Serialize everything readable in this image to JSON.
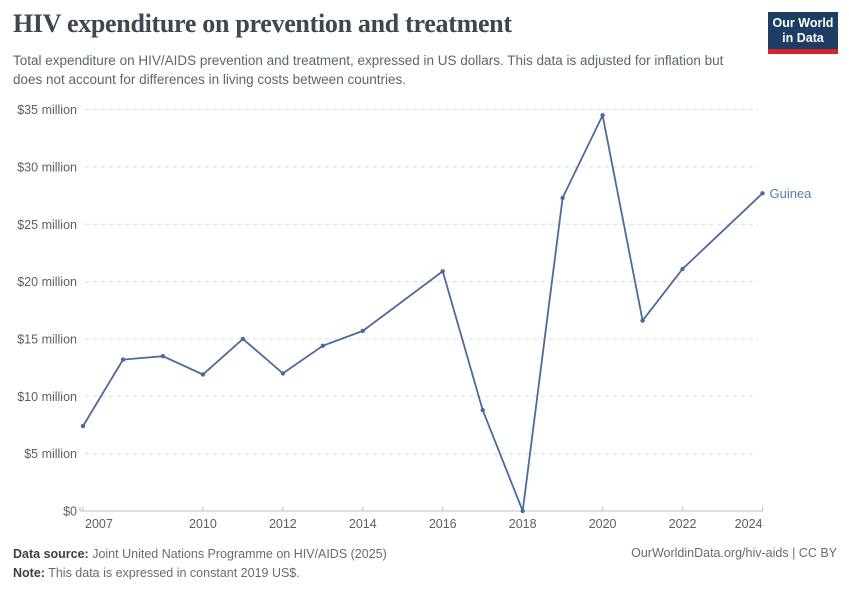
{
  "chart_data": {
    "type": "line",
    "title": "HIV expenditure on prevention and treatment",
    "subtitle": "Total expenditure on HIV/AIDS prevention and treatment, expressed in US dollars. This data is adjusted for inflation but does not account for differences in living costs between countries.",
    "values_unit": "million US$ (constant 2019)",
    "series": [
      {
        "name": "Guinea",
        "points": [
          [
            2007,
            7.4
          ],
          [
            2008,
            13.2
          ],
          [
            2009,
            13.5
          ],
          [
            2010,
            11.9
          ],
          [
            2011,
            15.0
          ],
          [
            2012,
            12.0
          ],
          [
            2013,
            14.4
          ],
          [
            2014,
            15.7
          ],
          [
            2016,
            20.9
          ],
          [
            2017,
            8.8
          ],
          [
            2018,
            0
          ],
          [
            2019,
            27.3
          ],
          [
            2020,
            34.5
          ],
          [
            2021,
            16.6
          ],
          [
            2022,
            21.1
          ],
          [
            2024,
            27.7
          ]
        ]
      }
    ],
    "missing_years": [
      2015,
      2023
    ],
    "x_ticks": [
      2007,
      2010,
      2012,
      2014,
      2016,
      2018,
      2020,
      2022,
      2024
    ],
    "y_ticks": [
      0,
      5,
      10,
      15,
      20,
      25,
      30,
      35
    ],
    "y_tick_labels": [
      "$0",
      "$5 million",
      "$10 million",
      "$15 million",
      "$20 million",
      "$25 million",
      "$30 million",
      "$35 million"
    ],
    "xlim": [
      2007,
      2024
    ],
    "ylim": [
      0,
      35
    ],
    "grid": "horizontal-dashed",
    "legend_position": "end-of-line-label"
  },
  "logo": {
    "line1": "Our World",
    "line2": "in Data"
  },
  "footer": {
    "datasource": {
      "label": "Data source:",
      "text": " Joint United Nations Programme on HIV/AIDS (2025)"
    },
    "note": {
      "label": "Note:",
      "text": " This data is expressed in constant 2019 US$."
    },
    "link": "OurWorldinData.org/hiv-aids | CC BY"
  },
  "colors": {
    "series": "#4c6b9c",
    "series_label": "#5b7cab",
    "grid": "#dcdcdc",
    "axis": "#bdbdbd",
    "tick_label": "#5f5f5f",
    "title": "#3d4751",
    "subtitle": "#5e646c",
    "footer_text": "#6b6b6b",
    "footer_label": "#3f3f3f",
    "logo_bg": "#1d3d63",
    "logo_bar": "#d1232a"
  }
}
